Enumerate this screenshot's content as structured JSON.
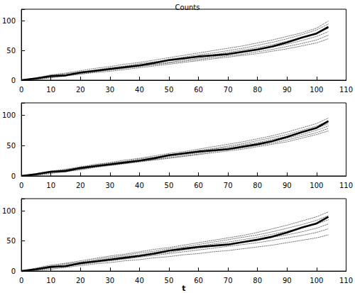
{
  "chart_data": [
    {
      "type": "line",
      "title": "Counts",
      "x": [
        0,
        5,
        10,
        15,
        20,
        25,
        30,
        35,
        40,
        45,
        50,
        55,
        60,
        65,
        70,
        75,
        80,
        85,
        90,
        95,
        100,
        104
      ],
      "xlim": [
        0,
        110
      ],
      "xticks": [
        0,
        10,
        20,
        30,
        40,
        50,
        60,
        70,
        80,
        90,
        100,
        110
      ],
      "ylim": [
        0,
        120
      ],
      "yticks": [
        0,
        50,
        100
      ],
      "grid": false,
      "series": [
        {
          "color": "#000000",
          "line_style": "dotted",
          "values": [
            0,
            4,
            9,
            12,
            16,
            20,
            23,
            27,
            30,
            34,
            38,
            42,
            46,
            50,
            54,
            58,
            63,
            68,
            74,
            80,
            88,
            100
          ]
        },
        {
          "color": "#000000",
          "line_style": "dotted",
          "values": [
            0,
            3,
            7,
            11,
            14,
            17,
            21,
            24,
            28,
            31,
            35,
            39,
            43,
            46,
            50,
            54,
            59,
            64,
            70,
            77,
            85,
            95
          ]
        },
        {
          "color": "#000000",
          "line_style": "dotted",
          "values": [
            0,
            2,
            6,
            9,
            13,
            16,
            19,
            23,
            26,
            30,
            33,
            36,
            40,
            43,
            47,
            51,
            55,
            60,
            66,
            72,
            79,
            88
          ]
        },
        {
          "color": "#000000",
          "line_style": "dotted",
          "values": [
            0,
            3,
            6,
            9,
            12,
            15,
            18,
            21,
            24,
            27,
            30,
            34,
            37,
            40,
            44,
            47,
            51,
            56,
            61,
            67,
            74,
            82
          ]
        },
        {
          "color": "#000000",
          "line_style": "dotted",
          "values": [
            0,
            2,
            5,
            8,
            11,
            14,
            17,
            20,
            23,
            26,
            29,
            32,
            35,
            38,
            41,
            44,
            48,
            52,
            57,
            62,
            68,
            76
          ]
        },
        {
          "color": "#000000",
          "line_style": "dotted",
          "values": [
            0,
            1,
            4,
            7,
            10,
            13,
            15,
            18,
            21,
            24,
            27,
            30,
            33,
            36,
            39,
            42,
            45,
            49,
            53,
            58,
            63,
            70
          ]
        },
        {
          "color": "#000000",
          "line_style": "solid",
          "values": [
            0,
            3,
            7,
            8,
            13,
            16,
            19,
            22,
            25,
            29,
            34,
            37,
            40,
            42,
            44,
            48,
            52,
            57,
            64,
            72,
            79,
            90
          ]
        }
      ]
    },
    {
      "type": "line",
      "x": [
        0,
        5,
        10,
        15,
        20,
        25,
        30,
        35,
        40,
        45,
        50,
        55,
        60,
        65,
        70,
        75,
        80,
        85,
        90,
        95,
        100,
        104
      ],
      "xlim": [
        0,
        110
      ],
      "xticks": [
        0,
        10,
        20,
        30,
        40,
        50,
        60,
        70,
        80,
        90,
        100,
        110
      ],
      "ylim": [
        0,
        120
      ],
      "yticks": [
        0,
        50,
        100
      ],
      "grid": false,
      "series": [
        {
          "color": "#000000",
          "line_style": "dotted",
          "values": [
            0,
            4,
            8,
            11,
            15,
            19,
            22,
            26,
            29,
            33,
            37,
            40,
            44,
            48,
            52,
            56,
            61,
            66,
            72,
            79,
            86,
            95
          ]
        },
        {
          "color": "#000000",
          "line_style": "dotted",
          "values": [
            0,
            3,
            7,
            10,
            14,
            18,
            21,
            24,
            28,
            31,
            35,
            38,
            42,
            45,
            49,
            53,
            58,
            63,
            68,
            75,
            82,
            90
          ]
        },
        {
          "color": "#000000",
          "line_style": "dotted",
          "values": [
            0,
            3,
            6,
            10,
            13,
            17,
            20,
            23,
            26,
            30,
            33,
            37,
            40,
            44,
            47,
            51,
            55,
            60,
            65,
            71,
            78,
            86
          ]
        },
        {
          "color": "#000000",
          "line_style": "dotted",
          "values": [
            0,
            2,
            6,
            9,
            12,
            16,
            19,
            22,
            25,
            28,
            32,
            35,
            38,
            42,
            45,
            49,
            53,
            57,
            62,
            68,
            75,
            82
          ]
        },
        {
          "color": "#000000",
          "line_style": "dotted",
          "values": [
            0,
            2,
            5,
            8,
            11,
            15,
            18,
            21,
            24,
            27,
            30,
            33,
            36,
            40,
            43,
            46,
            50,
            54,
            59,
            65,
            71,
            78
          ]
        },
        {
          "color": "#000000",
          "line_style": "dotted",
          "values": [
            0,
            1,
            4,
            7,
            10,
            14,
            17,
            20,
            23,
            26,
            29,
            32,
            35,
            38,
            41,
            44,
            48,
            52,
            56,
            62,
            68,
            74
          ]
        },
        {
          "color": "#000000",
          "line_style": "solid",
          "values": [
            0,
            3,
            7,
            8,
            13,
            16,
            19,
            22,
            25,
            29,
            34,
            37,
            40,
            42,
            44,
            48,
            52,
            57,
            64,
            72,
            79,
            90
          ]
        }
      ]
    },
    {
      "type": "line",
      "x_label": "t",
      "x": [
        0,
        5,
        10,
        15,
        20,
        25,
        30,
        35,
        40,
        45,
        50,
        55,
        60,
        65,
        70,
        75,
        80,
        85,
        90,
        95,
        100,
        104
      ],
      "xlim": [
        0,
        110
      ],
      "xticks": [
        0,
        10,
        20,
        30,
        40,
        50,
        60,
        70,
        80,
        90,
        100,
        110
      ],
      "ylim": [
        0,
        120
      ],
      "yticks": [
        0,
        50,
        100
      ],
      "grid": false,
      "series": [
        {
          "color": "#000000",
          "line_style": "dotted",
          "values": [
            0,
            5,
            10,
            13,
            17,
            21,
            25,
            28,
            32,
            36,
            39,
            43,
            47,
            51,
            55,
            59,
            64,
            70,
            76,
            83,
            90,
            98
          ]
        },
        {
          "color": "#000000",
          "line_style": "dotted",
          "values": [
            0,
            4,
            8,
            12,
            15,
            19,
            23,
            26,
            30,
            33,
            37,
            40,
            44,
            48,
            52,
            56,
            60,
            65,
            71,
            77,
            84,
            92
          ]
        },
        {
          "color": "#000000",
          "line_style": "dotted",
          "values": [
            0,
            3,
            7,
            10,
            14,
            17,
            21,
            24,
            27,
            31,
            34,
            38,
            41,
            45,
            48,
            52,
            56,
            61,
            66,
            72,
            78,
            85
          ]
        },
        {
          "color": "#000000",
          "line_style": "dotted",
          "values": [
            0,
            2,
            6,
            9,
            12,
            16,
            19,
            22,
            25,
            28,
            31,
            35,
            38,
            41,
            44,
            48,
            51,
            56,
            60,
            65,
            71,
            78
          ]
        },
        {
          "color": "#000000",
          "line_style": "dotted",
          "values": [
            0,
            2,
            5,
            8,
            11,
            14,
            17,
            20,
            23,
            26,
            29,
            32,
            35,
            38,
            41,
            44,
            47,
            51,
            55,
            59,
            64,
            70
          ]
        },
        {
          "color": "#000000",
          "line_style": "dotted",
          "values": [
            0,
            1,
            3,
            6,
            9,
            12,
            14,
            17,
            19,
            22,
            24,
            27,
            29,
            32,
            34,
            37,
            40,
            43,
            47,
            51,
            55,
            60
          ]
        },
        {
          "color": "#000000",
          "line_style": "solid",
          "values": [
            0,
            3,
            7,
            8,
            13,
            16,
            19,
            22,
            25,
            29,
            34,
            37,
            40,
            42,
            44,
            48,
            52,
            57,
            64,
            72,
            79,
            90
          ]
        }
      ]
    }
  ]
}
